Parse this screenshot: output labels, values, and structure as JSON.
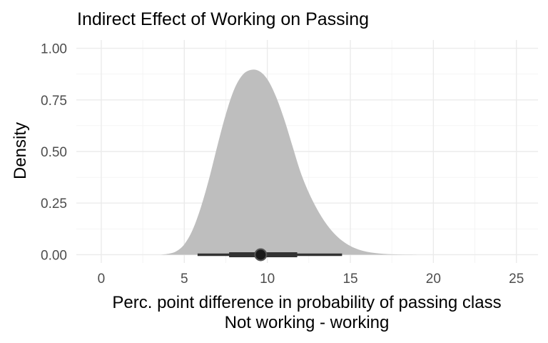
{
  "chart_data": {
    "type": "area",
    "title": "Indirect Effect of Working on Passing",
    "xlabel": [
      "Perc. point difference in probability of passing class",
      "Not working - working"
    ],
    "ylabel": "Density",
    "xlim": [
      -1.5,
      26.3
    ],
    "ylim": [
      -0.04,
      1.04
    ],
    "x_ticks": [
      0,
      5,
      10,
      15,
      20,
      25
    ],
    "x_tick_labels": [
      "0",
      "5",
      "10",
      "15",
      "20",
      "25"
    ],
    "y_ticks": [
      0,
      0.25,
      0.5,
      0.75,
      1
    ],
    "y_tick_labels": [
      "0.00",
      "0.25",
      "0.50",
      "0.75",
      "1.00"
    ],
    "grid": true,
    "fill_color": "#bebebe",
    "interval_color": "#333333",
    "density": {
      "x": [
        3.6,
        4.0,
        4.5,
        5.0,
        5.5,
        6.0,
        6.5,
        7.0,
        7.5,
        8.0,
        8.5,
        9.0,
        9.5,
        10.0,
        10.5,
        11.0,
        11.5,
        12.0,
        12.5,
        13.0,
        13.5,
        14.0,
        14.5,
        15.0,
        15.5,
        16.0,
        16.5,
        17.0,
        17.5,
        18.0,
        18.5,
        19.0
      ],
      "y": [
        0.0,
        0.004,
        0.016,
        0.05,
        0.12,
        0.23,
        0.37,
        0.53,
        0.68,
        0.8,
        0.87,
        0.895,
        0.89,
        0.85,
        0.77,
        0.66,
        0.53,
        0.4,
        0.3,
        0.22,
        0.155,
        0.105,
        0.068,
        0.042,
        0.025,
        0.014,
        0.008,
        0.004,
        0.002,
        0.001,
        0.0005,
        0.0
      ]
    },
    "point_interval": {
      "point": 9.6,
      "inner": [
        7.7,
        11.8
      ],
      "outer": [
        5.8,
        14.5
      ]
    }
  }
}
